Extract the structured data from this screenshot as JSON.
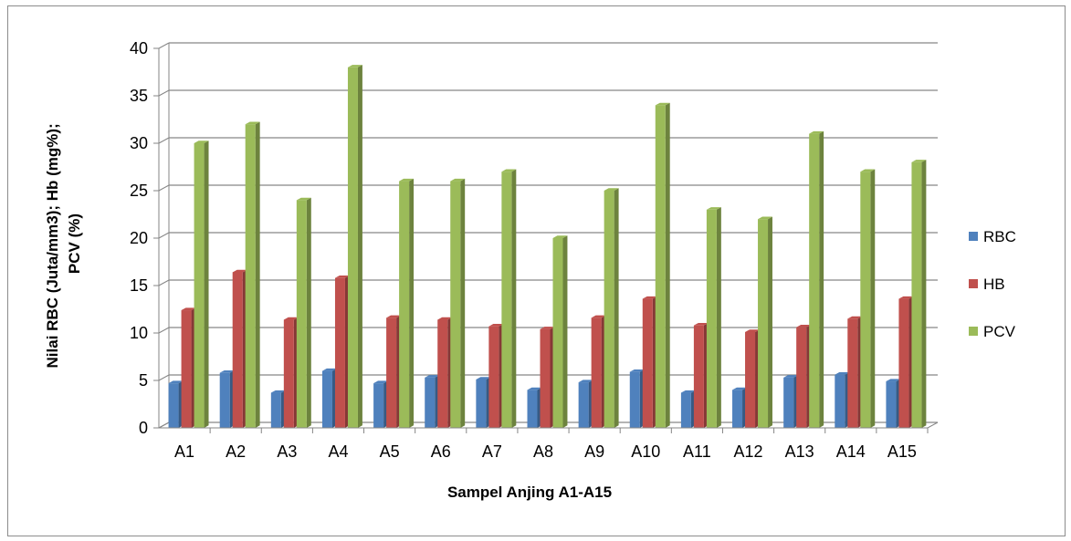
{
  "chart_data": {
    "type": "bar",
    "title": "",
    "xlabel": "Sampel Anjing A1-A15",
    "ylabel_lines": [
      "Nilai RBC (Juta/mm3); Hb (mg%);",
      "PCV (%)"
    ],
    "ylim": [
      0,
      40
    ],
    "yticks": [
      0,
      5,
      10,
      15,
      20,
      25,
      30,
      35,
      40
    ],
    "grid": true,
    "legend_position": "right",
    "categories": [
      "A1",
      "A2",
      "A3",
      "A4",
      "A5",
      "A6",
      "A7",
      "A8",
      "A9",
      "A10",
      "A11",
      "A12",
      "A13",
      "A14",
      "A15"
    ],
    "series": [
      {
        "name": "RBC",
        "color": "#4f81bd",
        "values": [
          4.7,
          5.8,
          3.7,
          6.0,
          4.7,
          5.3,
          5.1,
          4.0,
          4.8,
          5.9,
          3.7,
          4.0,
          5.3,
          5.6,
          4.9
        ]
      },
      {
        "name": "HB",
        "color": "#c0504d",
        "values": [
          12.4,
          16.4,
          11.4,
          15.8,
          11.6,
          11.4,
          10.7,
          10.4,
          11.6,
          13.6,
          10.8,
          10.1,
          10.6,
          11.5,
          13.6
        ]
      },
      {
        "name": "PCV",
        "color": "#9bbb59",
        "values": [
          30,
          32,
          24,
          38,
          26,
          26,
          27,
          20,
          25,
          34,
          23,
          22,
          31,
          27,
          28
        ]
      }
    ]
  }
}
